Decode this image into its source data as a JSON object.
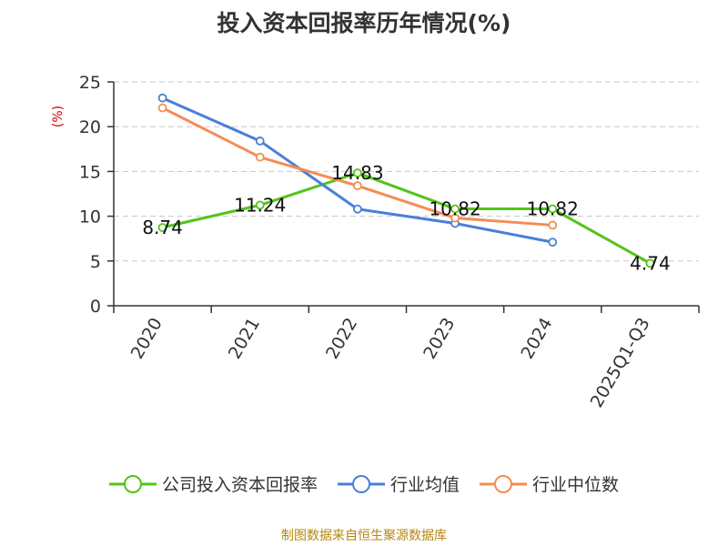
{
  "chart_data": {
    "type": "line",
    "title": "投入资本回报率历年情况(%)",
    "ylabel": "(%)",
    "xlabel": "",
    "categories": [
      "2020",
      "2021",
      "2022",
      "2023",
      "2024",
      "2025Q1-Q3"
    ],
    "ylim": [
      0,
      25
    ],
    "yticks": [
      0,
      5,
      10,
      15,
      20,
      25
    ],
    "grid": true,
    "legend_position": "bottom",
    "series": [
      {
        "name": "公司投入资本回报率",
        "color": "#52c41a",
        "values": [
          8.74,
          11.24,
          14.83,
          10.82,
          10.82,
          4.74
        ],
        "labels": [
          "8.74",
          "11.24",
          "14.83",
          "10.82",
          "10.82",
          "4.74"
        ]
      },
      {
        "name": "行业均值",
        "color": "#4a7fd8",
        "values": [
          23.2,
          18.4,
          10.8,
          9.2,
          7.1,
          null
        ]
      },
      {
        "name": "行业中位数",
        "color": "#f58c54",
        "values": [
          22.1,
          16.6,
          13.4,
          9.8,
          9.0,
          null
        ]
      }
    ]
  },
  "source_note": "制图数据来自恒生聚源数据库"
}
